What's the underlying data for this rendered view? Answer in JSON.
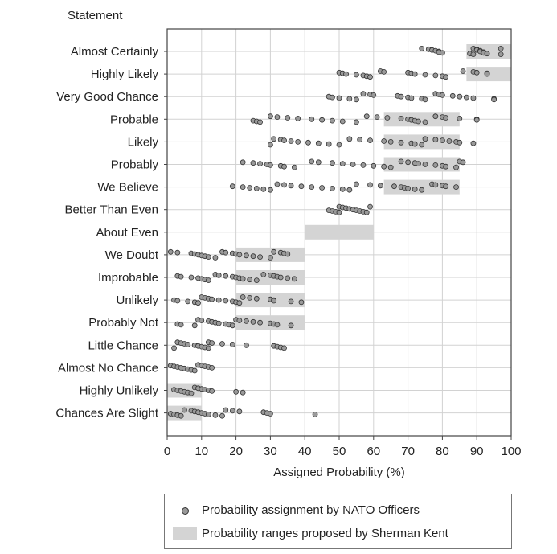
{
  "chart_data": {
    "type": "scatter",
    "title": "",
    "category_axis_title": "Statement",
    "xlabel": "Assigned Probability (%)",
    "xlim": [
      0,
      100
    ],
    "xticks": [
      0,
      10,
      20,
      30,
      40,
      50,
      60,
      70,
      80,
      90,
      100
    ],
    "grid": true,
    "legend_position": "bottom",
    "categories": [
      "Almost Certainly",
      "Highly Likely",
      "Very Good Chance",
      "Probable",
      "Likely",
      "Probably",
      "We Believe",
      "Better Than Even",
      "About Even",
      "We Doubt",
      "Improbable",
      "Unlikely",
      "Probably Not",
      "Little Chance",
      "Almost No Chance",
      "Highly Unlikely",
      "Chances Are Slight"
    ],
    "series": [
      {
        "name": "Probability assignment by NATO Officers",
        "kind": "points",
        "color": "#9a9a9a",
        "values": [
          [
            74,
            76,
            77,
            78,
            79,
            79,
            80,
            88,
            89,
            89,
            90,
            90,
            91,
            91,
            92,
            92,
            93,
            97,
            97
          ],
          [
            50,
            51,
            52,
            55,
            57,
            58,
            59,
            62,
            63,
            70,
            71,
            72,
            75,
            78,
            80,
            81,
            86,
            89,
            90,
            93,
            93
          ],
          [
            47,
            48,
            50,
            53,
            55,
            57,
            59,
            60,
            67,
            68,
            70,
            71,
            74,
            75,
            78,
            79,
            80,
            83,
            85,
            87,
            89,
            95,
            95
          ],
          [
            25,
            26,
            27,
            30,
            32,
            35,
            38,
            42,
            45,
            48,
            51,
            55,
            58,
            61,
            64,
            68,
            70,
            71,
            72,
            73,
            75,
            78,
            80,
            81,
            85,
            90,
            90
          ],
          [
            30,
            31,
            33,
            34,
            36,
            38,
            41,
            44,
            47,
            50,
            53,
            56,
            59,
            63,
            65,
            68,
            71,
            72,
            74,
            75,
            78,
            80,
            82,
            84,
            85,
            89
          ],
          [
            22,
            25,
            27,
            29,
            30,
            33,
            34,
            37,
            42,
            44,
            48,
            51,
            54,
            57,
            60,
            63,
            65,
            68,
            70,
            72,
            73,
            75,
            78,
            80,
            81,
            84,
            85,
            86
          ],
          [
            19,
            22,
            24,
            26,
            28,
            30,
            32,
            34,
            36,
            39,
            42,
            45,
            48,
            51,
            53,
            55,
            59,
            62,
            66,
            68,
            69,
            70,
            72,
            74,
            77,
            78,
            80,
            81,
            84
          ],
          [
            47,
            48,
            49,
            50,
            50,
            51,
            52,
            53,
            54,
            55,
            56,
            57,
            58,
            59
          ],
          [],
          [
            1,
            3,
            7,
            8,
            9,
            10,
            11,
            12,
            14,
            16,
            17,
            19,
            20,
            21,
            23,
            25,
            27,
            30,
            31,
            33,
            34,
            35
          ],
          [
            3,
            4,
            7,
            9,
            10,
            11,
            12,
            14,
            15,
            17,
            19,
            20,
            21,
            22,
            24,
            26,
            28,
            30,
            31,
            32,
            33,
            35,
            37
          ],
          [
            2,
            3,
            6,
            8,
            9,
            10,
            11,
            12,
            13,
            15,
            17,
            19,
            20,
            21,
            22,
            24,
            26,
            30,
            31,
            31,
            36,
            39
          ],
          [
            3,
            4,
            8,
            9,
            10,
            12,
            13,
            14,
            15,
            17,
            18,
            19,
            20,
            21,
            23,
            25,
            27,
            30,
            31,
            32,
            36
          ],
          [
            2,
            3,
            4,
            5,
            6,
            8,
            9,
            10,
            11,
            12,
            12,
            13,
            16,
            19,
            23,
            31,
            32,
            33,
            34
          ],
          [
            1,
            2,
            3,
            4,
            5,
            6,
            7,
            8,
            9,
            10,
            11,
            12,
            13
          ],
          [
            2,
            3,
            4,
            5,
            6,
            7,
            8,
            9,
            10,
            11,
            12,
            13,
            20,
            22
          ],
          [
            1,
            2,
            3,
            4,
            5,
            7,
            8,
            9,
            10,
            11,
            12,
            14,
            16,
            17,
            19,
            21,
            28,
            29,
            30,
            43
          ]
        ]
      },
      {
        "name": "Probability ranges proposed by Sherman Kent",
        "kind": "ranges",
        "color": "#d4d4d4",
        "ranges": [
          [
            87,
            100
          ],
          [
            87,
            100
          ],
          null,
          [
            63,
            85
          ],
          [
            63,
            85
          ],
          [
            63,
            85
          ],
          [
            63,
            85
          ],
          null,
          [
            40,
            60
          ],
          [
            20,
            40
          ],
          [
            20,
            40
          ],
          [
            20,
            40
          ],
          [
            20,
            40
          ],
          null,
          null,
          [
            0,
            10
          ],
          [
            0,
            10
          ]
        ]
      }
    ]
  }
}
